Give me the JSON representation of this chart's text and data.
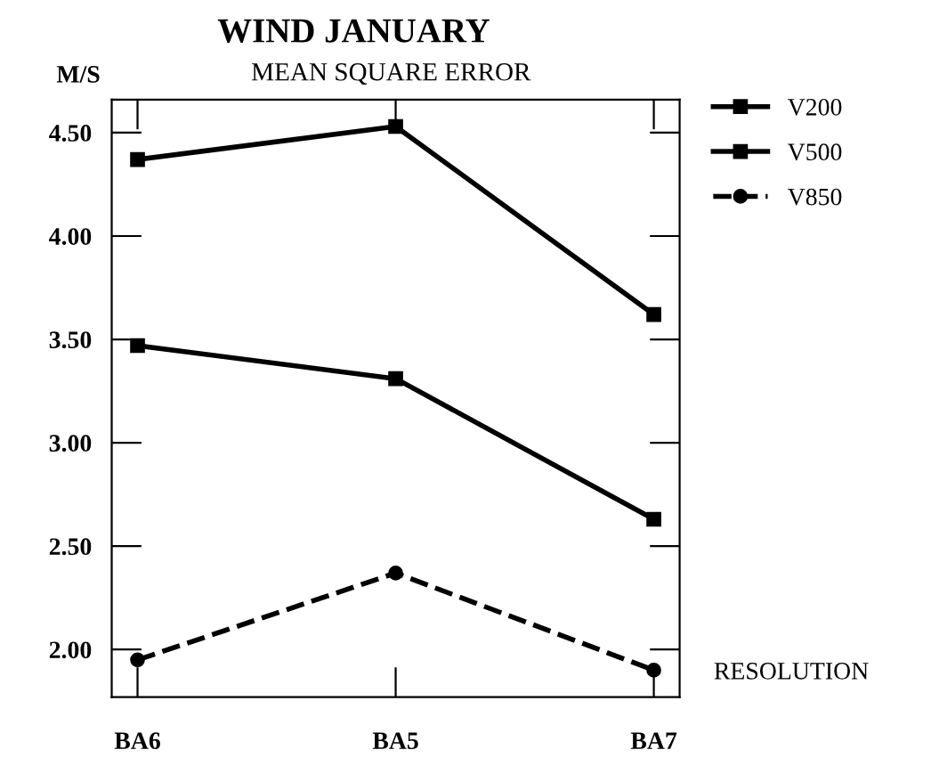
{
  "chart_data": {
    "type": "line",
    "title": "WIND JANUARY",
    "subtitle": "MEAN SQUARE ERROR",
    "ylabel": "M/S",
    "xlabel": "RESOLUTION",
    "categories": [
      "BA6",
      "BA5",
      "BA7"
    ],
    "series": [
      {
        "name": "V200",
        "color": "#000000",
        "values": [
          4.37,
          4.53,
          3.62
        ],
        "marker": "square",
        "line_style": "solid"
      },
      {
        "name": "V500",
        "color": "#000000",
        "values": [
          3.47,
          3.31,
          2.63
        ],
        "marker": "square",
        "line_style": "solid"
      },
      {
        "name": "V850",
        "color": "#000000",
        "values": [
          1.95,
          2.37,
          1.9
        ],
        "marker": "circle",
        "line_style": "dashed"
      }
    ],
    "ylim": [
      1.77,
      4.66
    ],
    "yticks": [
      {
        "value": 2,
        "label": "2.00"
      },
      {
        "value": 2.5,
        "label": "2.50"
      },
      {
        "value": 3,
        "label": "3.00"
      },
      {
        "value": 3.5,
        "label": "3.50"
      },
      {
        "value": 4,
        "label": "4.00"
      },
      {
        "value": 4.5,
        "label": "4.50"
      }
    ],
    "grid": false,
    "legend": "top right"
  }
}
